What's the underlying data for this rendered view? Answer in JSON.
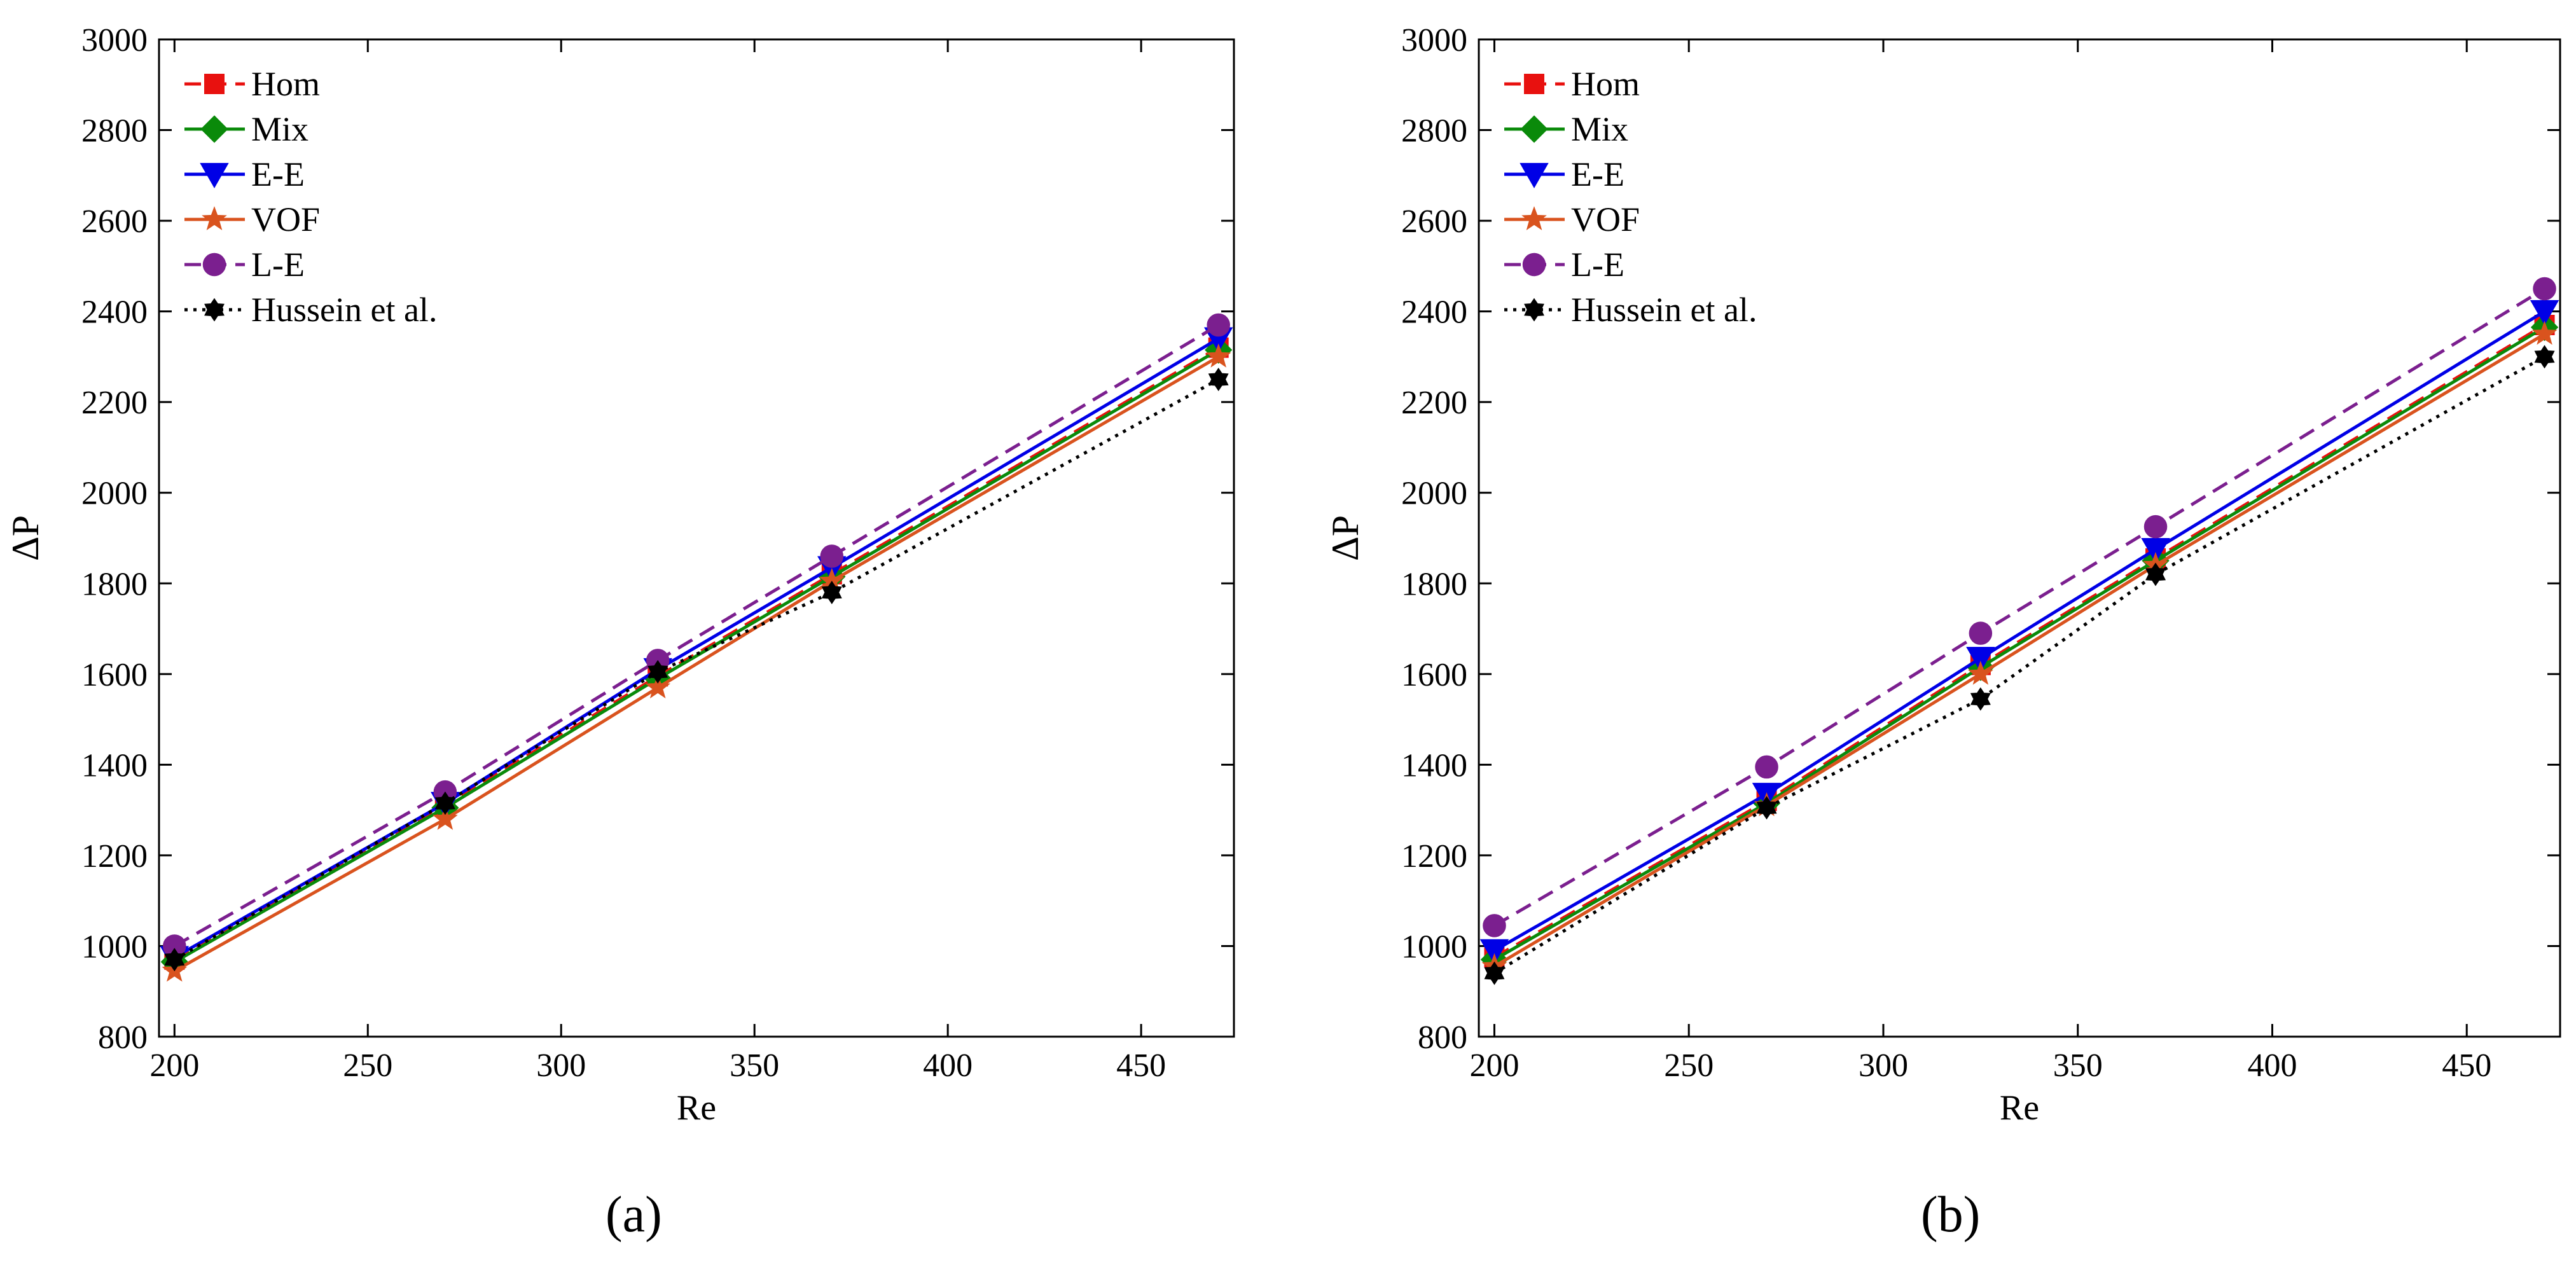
{
  "figure": {
    "panels": [
      "(a)",
      "(b)"
    ]
  },
  "colors": {
    "Hom": "#e8110f",
    "Mix": "#0a8a0a",
    "E-E": "#0000e6",
    "VOF": "#d9531e",
    "L-E": "#7b1f8f",
    "Hussein": "#000000"
  },
  "chart_data": [
    {
      "type": "line",
      "panel": "(a)",
      "title": "",
      "xlabel": "Re",
      "ylabel": "ΔP",
      "xlim": [
        196,
        474
      ],
      "ylim": [
        800,
        3000
      ],
      "xticks": [
        200,
        250,
        300,
        350,
        400,
        450
      ],
      "yticks": [
        800,
        1000,
        1200,
        1400,
        1600,
        1800,
        2000,
        2200,
        2400,
        2600,
        2800,
        3000
      ],
      "legend_position": "top-left",
      "x": [
        200,
        270,
        325,
        370,
        470
      ],
      "series": [
        {
          "name": "Hom",
          "marker": "square",
          "dash": "dashed",
          "color_key": "Hom",
          "values": [
            970,
            1310,
            1595,
            1820,
            2320
          ]
        },
        {
          "name": "Mix",
          "marker": "diamond",
          "dash": "solid",
          "color_key": "Mix",
          "values": [
            965,
            1305,
            1590,
            1815,
            2315
          ]
        },
        {
          "name": "E-E",
          "marker": "triangle-down",
          "dash": "solid",
          "color_key": "E-E",
          "values": [
            975,
            1315,
            1610,
            1835,
            2340
          ]
        },
        {
          "name": "VOF",
          "marker": "star",
          "dash": "solid",
          "color_key": "VOF",
          "values": [
            945,
            1280,
            1570,
            1805,
            2300
          ]
        },
        {
          "name": "L-E",
          "marker": "circle",
          "dash": "dashed",
          "color_key": "L-E",
          "values": [
            1000,
            1340,
            1630,
            1860,
            2370
          ]
        },
        {
          "name": "Hussein et al.",
          "marker": "plus",
          "dash": "dotted",
          "color_key": "Hussein",
          "values": [
            970,
            1315,
            1605,
            1780,
            2250
          ]
        }
      ]
    },
    {
      "type": "line",
      "panel": "(b)",
      "title": "",
      "xlabel": "Re",
      "ylabel": "ΔP",
      "xlim": [
        196,
        474
      ],
      "ylim": [
        800,
        3000
      ],
      "xticks": [
        200,
        250,
        300,
        350,
        400,
        450
      ],
      "yticks": [
        800,
        1000,
        1200,
        1400,
        1600,
        1800,
        2000,
        2200,
        2400,
        2600,
        2800,
        3000
      ],
      "legend_position": "top-left",
      "x": [
        200,
        270,
        325,
        370,
        470
      ],
      "series": [
        {
          "name": "Hom",
          "marker": "square",
          "dash": "dashed",
          "color_key": "Hom",
          "values": [
            975,
            1320,
            1620,
            1855,
            2370
          ]
        },
        {
          "name": "Mix",
          "marker": "diamond",
          "dash": "solid",
          "color_key": "Mix",
          "values": [
            970,
            1315,
            1615,
            1850,
            2365
          ]
        },
        {
          "name": "E-E",
          "marker": "triangle-down",
          "dash": "solid",
          "color_key": "E-E",
          "values": [
            990,
            1335,
            1635,
            1875,
            2400
          ]
        },
        {
          "name": "VOF",
          "marker": "star",
          "dash": "solid",
          "color_key": "VOF",
          "values": [
            955,
            1310,
            1600,
            1840,
            2350
          ]
        },
        {
          "name": "L-E",
          "marker": "circle",
          "dash": "dashed",
          "color_key": "L-E",
          "values": [
            1045,
            1395,
            1690,
            1925,
            2450
          ]
        },
        {
          "name": "Hussein et al.",
          "marker": "plus",
          "dash": "dotted",
          "color_key": "Hussein",
          "values": [
            940,
            1305,
            1545,
            1820,
            2300
          ]
        }
      ]
    }
  ]
}
